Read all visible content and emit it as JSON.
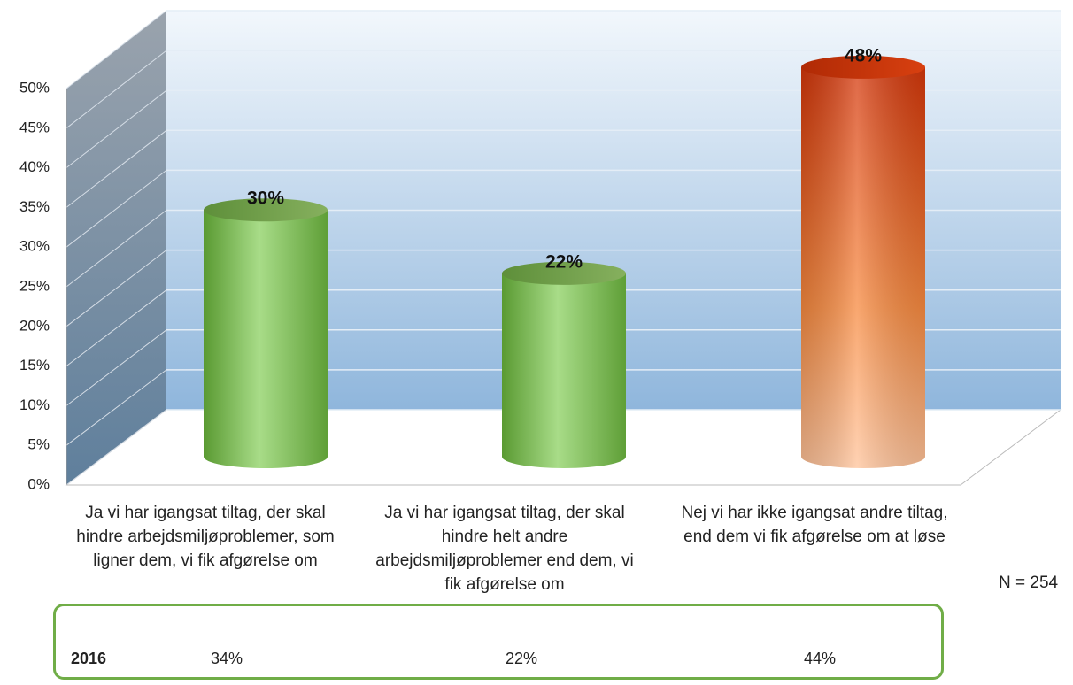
{
  "chart_data": {
    "type": "bar3d",
    "categories": [
      "Ja vi har igangsat tiltag, der skal hindre arbejdsmiljøproblemer, som ligner dem, vi fik afgørelse om",
      "Ja vi har igangsat tiltag, der skal hindre helt andre arbejdsmiljøproblemer end dem, vi fik afgørelse om",
      "Nej vi har ikke igangsat andre tiltag, end dem vi fik afgørelse om at løse"
    ],
    "values": [
      30,
      22,
      48
    ],
    "value_labels": [
      "30%",
      "22%",
      "48%"
    ],
    "colors": [
      "green",
      "green",
      "orange"
    ],
    "ylim": [
      0,
      50
    ],
    "yticks": [
      {
        "value": 0,
        "label": "0%"
      },
      {
        "value": 5,
        "label": "5%"
      },
      {
        "value": 10,
        "label": "10%"
      },
      {
        "value": 15,
        "label": "15%"
      },
      {
        "value": 20,
        "label": "20%"
      },
      {
        "value": 25,
        "label": "25%"
      },
      {
        "value": 30,
        "label": "30%"
      },
      {
        "value": 35,
        "label": "35%"
      },
      {
        "value": 40,
        "label": "40%"
      },
      {
        "value": 45,
        "label": "45%"
      },
      {
        "value": 50,
        "label": "50%"
      }
    ],
    "grid": true,
    "note": "N = 254"
  },
  "table": {
    "row_label": "2016",
    "cells": [
      "34%",
      "22%",
      "44%"
    ]
  }
}
